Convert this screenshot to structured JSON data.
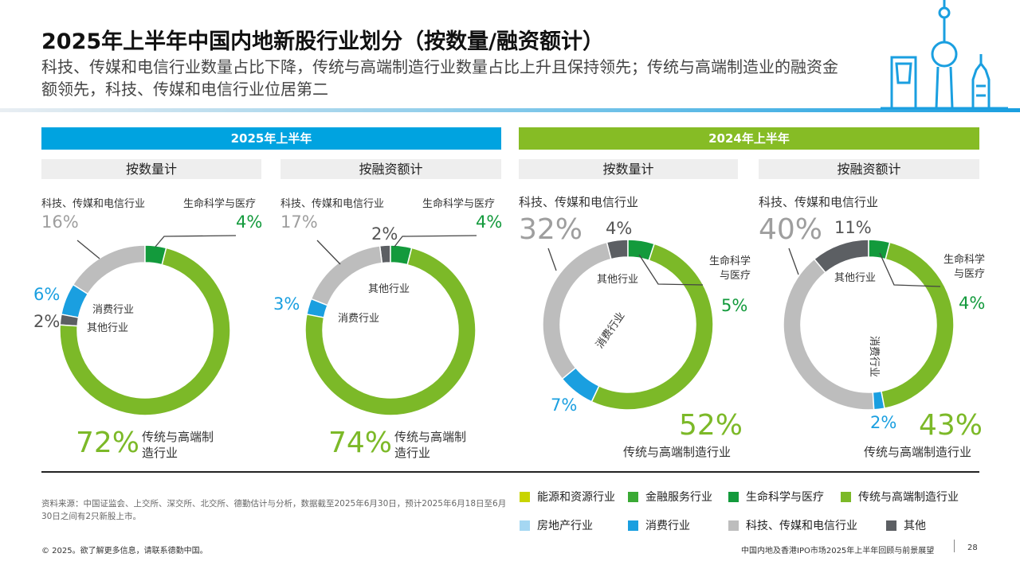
{
  "title": "2025年上半年中国内地新股行业划分（按数量/融资额计）",
  "subtitle": "科技、传媒和电信行业数量占比下降，传统与高端制造行业数量占比上升且保持领先；传统与高端制造业的融资金额领先，科技、传媒和电信行业位居第二",
  "sections": {
    "y2025": "2025年上半年",
    "y2024": "2024年上半年",
    "by_count": "按数量计",
    "by_amount": "按融资额计"
  },
  "colors": {
    "energy": "#c8d400",
    "financial": "#3aaa35",
    "life": "#139a3c",
    "manufacturing": "#7cb928",
    "realestate": "#a5d7f2",
    "consumer": "#1a9fe0",
    "tmt": "#bdbdbd",
    "other": "#5c5f63",
    "bar2025": "#00a3e0",
    "bar2024": "#86bc25"
  },
  "labels": {
    "c1": {
      "tmt_label": "科技、传媒和电信行业",
      "tmt_pct": "16%",
      "life_label": "生命科学与医疗",
      "life_pct": "4%",
      "consumer_pct": "6%",
      "consumer_label": "消费行业",
      "other_pct": "2%",
      "other_label": "其他行业",
      "mfg_pct": "72%",
      "mfg_label": "传统与高端制造行业"
    },
    "c2": {
      "tmt_label": "科技、传媒和电信行业",
      "tmt_pct": "17%",
      "life_label": "生命科学与医疗",
      "life_pct": "4%",
      "other_pct": "2%",
      "other_label": "其他行业",
      "consumer_pct": "3%",
      "consumer_label": "消费行业",
      "mfg_pct": "74%",
      "mfg_label": "传统与高端制造行业"
    },
    "c3": {
      "tmt_label": "科技、传媒和电信行业",
      "tmt_pct": "32%",
      "other_pct": "4%",
      "other_label": "其他行业",
      "life_label": "生命科学与医疗",
      "life_pct": "5%",
      "consumer_label": "消费行业",
      "consumer_pct": "7%",
      "mfg_pct": "52%",
      "mfg_label": "传统与高端制造行业"
    },
    "c4": {
      "tmt_label": "科技、传媒和电信行业",
      "tmt_pct": "40%",
      "other_pct": "11%",
      "other_label": "其他行业",
      "life_label": "生命科学与医疗",
      "life_pct": "4%",
      "consumer_label": "消费行业",
      "consumer_pct": "2%",
      "mfg_pct": "43%",
      "mfg_label": "传统与高端制造行业"
    }
  },
  "legend": [
    {
      "label": "能源和资源行业",
      "color": "#c8d400"
    },
    {
      "label": "金融服务行业",
      "color": "#3aaa35"
    },
    {
      "label": "生命科学与医疗",
      "color": "#139a3c"
    },
    {
      "label": "传统与高端制造行业",
      "color": "#7cb928"
    },
    {
      "label": "房地产行业",
      "color": "#a5d7f2"
    },
    {
      "label": "消费行业",
      "color": "#1a9fe0"
    },
    {
      "label": "科技、传媒和电信行业",
      "color": "#bdbdbd"
    },
    {
      "label": "其他",
      "color": "#5c5f63"
    }
  ],
  "source": "资料来源：中国证监会、上交所、深交所、北交所、德勤估计与分析，数据截至2025年6月30日，预计2025年6月18日至6月30日之间有2只新股上市。",
  "footer": {
    "left": "© 2025。欲了解更多信息，请联系德勤中国。",
    "right": "中国内地及香港IPO市场2025年上半年回顾与前景展望",
    "page": "28"
  },
  "chart_data": [
    {
      "type": "pie",
      "group": "2025年上半年",
      "title": "按数量计",
      "categories": [
        "生命科学与医疗",
        "传统与高端制造行业",
        "其他行业",
        "消费行业",
        "科技、传媒和电信行业"
      ],
      "values": [
        4,
        72,
        2,
        6,
        16
      ],
      "colors": [
        "#139a3c",
        "#7cb928",
        "#5c5f63",
        "#1a9fe0",
        "#bdbdbd"
      ]
    },
    {
      "type": "pie",
      "group": "2025年上半年",
      "title": "按融资额计",
      "categories": [
        "生命科学与医疗",
        "传统与高端制造行业",
        "消费行业",
        "科技、传媒和电信行业",
        "其他行业"
      ],
      "values": [
        4,
        74,
        3,
        17,
        2
      ],
      "colors": [
        "#139a3c",
        "#7cb928",
        "#1a9fe0",
        "#bdbdbd",
        "#5c5f63"
      ]
    },
    {
      "type": "pie",
      "group": "2024年上半年",
      "title": "按数量计",
      "categories": [
        "生命科学与医疗",
        "传统与高端制造行业",
        "消费行业",
        "科技、传媒和电信行业",
        "其他行业"
      ],
      "values": [
        5,
        52,
        7,
        32,
        4
      ],
      "colors": [
        "#139a3c",
        "#7cb928",
        "#1a9fe0",
        "#bdbdbd",
        "#5c5f63"
      ]
    },
    {
      "type": "pie",
      "group": "2024年上半年",
      "title": "按融资额计",
      "categories": [
        "生命科学与医疗",
        "传统与高端制造行业",
        "消费行业",
        "科技、传媒和电信行业",
        "其他行业"
      ],
      "values": [
        4,
        43,
        2,
        40,
        11
      ],
      "colors": [
        "#139a3c",
        "#7cb928",
        "#1a9fe0",
        "#bdbdbd",
        "#5c5f63"
      ]
    }
  ]
}
